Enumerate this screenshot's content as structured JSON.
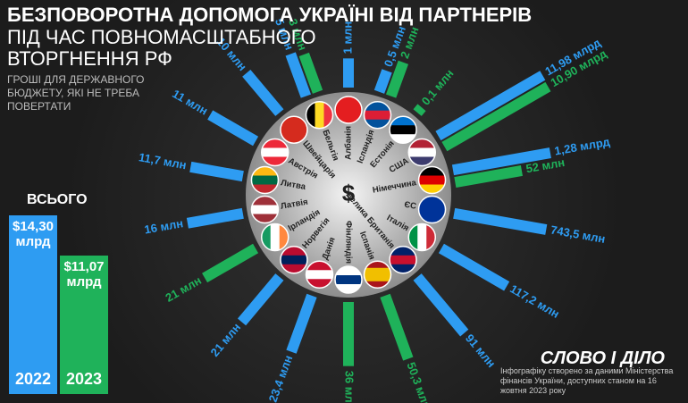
{
  "chart_data": [
    {
      "type": "radial-bar",
      "title": "БЕЗПОВОРОТНА ДОПОМОГА УКРАЇНІ ВІД ПАРТНЕРІВ",
      "subtitle": "ПІД ЧАС ПОВНОМАСШТАБНОГО ВТОРГНЕННЯ РФ",
      "description": "ГРОШІ ДЛЯ ДЕРЖАВНОГО БЮДЖЕТУ, ЯКІ НЕ ТРЕБА ПОВЕРТАТИ",
      "center_label": "$",
      "categories": [
        "США",
        "Німеччина",
        "ЄС",
        "Італія",
        "Велика Британія",
        "Іспанія",
        "Фінляндія",
        "Данія",
        "Норвегія",
        "Ірландія",
        "Латвія",
        "Литва",
        "Австрія",
        "Швейцарія",
        "Бельгія",
        "Албанія",
        "Ісландія",
        "Естонія"
      ],
      "log_scale": true,
      "ylim": [
        0.05,
        12000
      ],
      "series": [
        {
          "color": "#2e9cf2",
          "values": [
            11980,
            1280,
            743.5,
            117.2,
            91,
            null,
            null,
            23.4,
            21,
            null,
            16,
            11.7,
            11,
            10,
            5,
            1,
            0.5,
            null
          ],
          "value_labels": [
            "11,98 млрд",
            "1,28 млрд",
            "743,5 млн",
            "117,2 млн",
            "91 млн",
            null,
            null,
            "23,4 млн",
            "21 млн",
            null,
            "16 млн",
            "11,7 млн",
            "11 млн",
            "10 млн",
            "5 млн",
            "1 млн",
            "0,5 млн",
            null
          ]
        },
        {
          "color": "#1fb25a",
          "values": [
            10900,
            52,
            null,
            null,
            null,
            50.3,
            36,
            null,
            null,
            21,
            null,
            null,
            null,
            null,
            3,
            null,
            2,
            0.1
          ],
          "value_labels": [
            "10,90 млрд",
            "52 млн",
            null,
            null,
            null,
            "50,3 млн",
            "36 млн",
            null,
            null,
            "21 млн",
            null,
            null,
            null,
            null,
            "3 млн",
            null,
            "2 млн",
            "0,1 млн"
          ]
        }
      ]
    },
    {
      "type": "bar",
      "title": "ВСЬОГО",
      "categories": [
        "2022",
        "2023"
      ],
      "values": [
        14300,
        11070
      ],
      "value_labels": [
        "$14,30 млрд",
        "$11,07 млрд"
      ],
      "colors": [
        "#2e9cf2",
        "#1fb25a"
      ],
      "ylim": [
        0,
        14300
      ]
    }
  ],
  "logo": "СЛОВО І ДІЛО",
  "source": "Інфографіку створено за даними Міністерства фінансів України, доступних станом на 16 жовтня 2023 року"
}
